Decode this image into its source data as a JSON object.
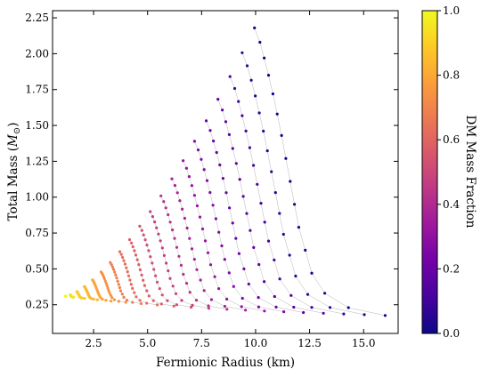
{
  "chart_data": {
    "type": "scatter",
    "title": "",
    "xlabel": "Fermionic Radius (km)",
    "ylabel_prefix": "Total Mass (",
    "ylabel_symbol": "M",
    "ylabel_suffix": ")",
    "xlim": [
      0.6,
      16.6
    ],
    "ylim": [
      0.05,
      2.3
    ],
    "xticks": [
      2.5,
      5.0,
      7.5,
      10.0,
      12.5,
      15.0
    ],
    "xtick_labels": [
      "2.5",
      "5.0",
      "7.5",
      "10.0",
      "12.5",
      "15.0"
    ],
    "yticks": [
      0.25,
      0.5,
      0.75,
      1.0,
      1.25,
      1.5,
      1.75,
      2.0,
      2.25
    ],
    "ytick_labels": [
      "0.25",
      "0.50",
      "0.75",
      "1.00",
      "1.25",
      "1.50",
      "1.75",
      "2.00",
      "2.25"
    ],
    "colorbar": {
      "label": "DM Mass Fraction",
      "range": [
        0.0,
        1.0
      ],
      "ticks": [
        0.0,
        0.2,
        0.4,
        0.6,
        0.8,
        1.0
      ],
      "tick_labels": [
        "0.0",
        "0.2",
        "0.4",
        "0.6",
        "0.8",
        "1.0"
      ],
      "colormap": [
        "#0d0887",
        "#46039f",
        "#7201a8",
        "#9c179e",
        "#bd3786",
        "#d8576b",
        "#ed7953",
        "#fb9f3a",
        "#fdca26",
        "#f0f921"
      ]
    },
    "connector_color": "#b4b4b4",
    "family": {
      "description_of_series": "",
      "num_curves": 16,
      "num_dm_fractions": 20,
      "curve_end_radius_km": [
        9.95,
        10.2,
        10.4,
        10.6,
        10.8,
        11.0,
        11.2,
        11.4,
        11.6,
        11.8,
        12.0,
        12.3,
        12.6,
        13.2,
        14.3,
        16.0
      ],
      "curve_end_mass": [
        2.18,
        2.08,
        1.97,
        1.85,
        1.72,
        1.58,
        1.43,
        1.27,
        1.11,
        0.95,
        0.79,
        0.63,
        0.47,
        0.33,
        0.23,
        0.175
      ],
      "converged_point": [
        1.2,
        0.31
      ]
    }
  }
}
